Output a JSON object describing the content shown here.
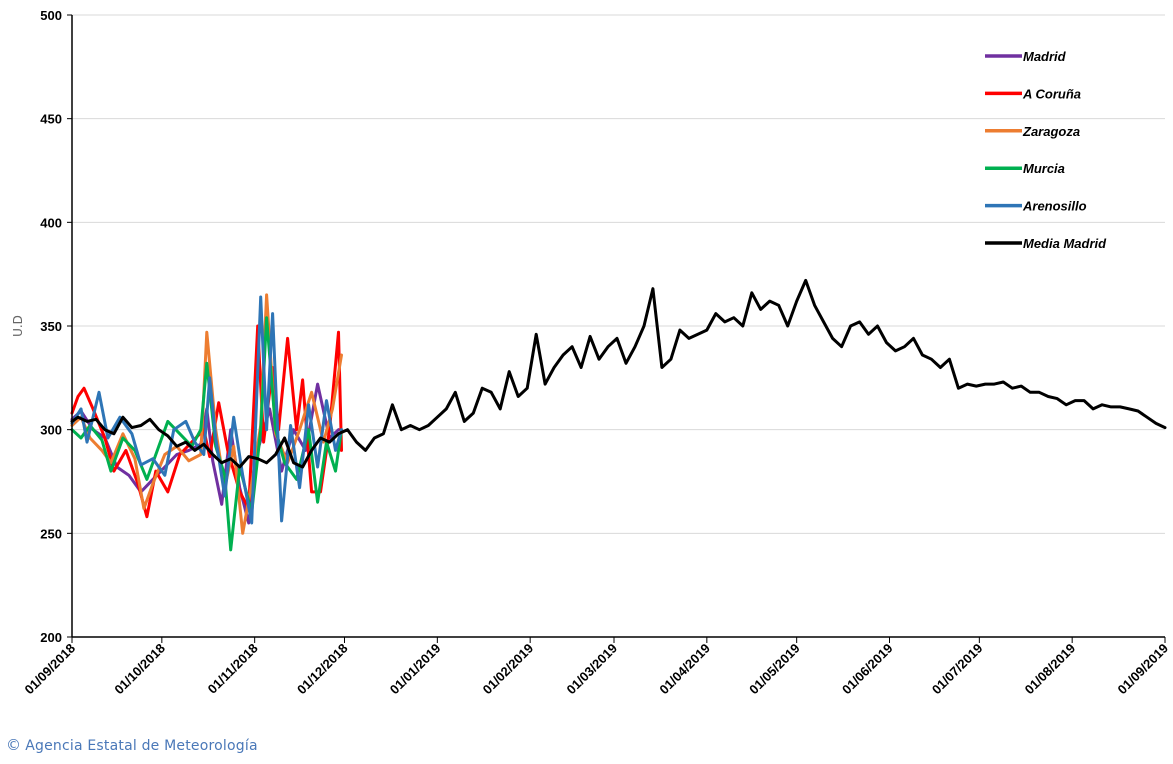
{
  "chart_data": {
    "type": "line",
    "title": "",
    "xlabel": "",
    "ylabel": "U.D",
    "ylim": [
      200,
      500
    ],
    "y_ticks": [
      200,
      250,
      300,
      350,
      400,
      450,
      500
    ],
    "x_range": [
      "2018-09-01",
      "2019-09-01"
    ],
    "x_ticks": [
      "01/09/2018",
      "01/10/2018",
      "01/11/2018",
      "01/12/2018",
      "01/01/2019",
      "01/02/2019",
      "01/03/2019",
      "01/04/2019",
      "01/05/2019",
      "01/06/2019",
      "01/07/2019",
      "01/08/2019",
      "01/09/2019"
    ],
    "grid": "horizontal",
    "legend_position": "top-right",
    "series": [
      {
        "name": "Madrid",
        "color": "#7030a0",
        "points": [
          [
            "2018-09-01",
            305
          ],
          [
            "2018-09-04",
            309
          ],
          [
            "2018-09-08",
            300
          ],
          [
            "2018-09-12",
            296
          ],
          [
            "2018-09-16",
            282
          ],
          [
            "2018-09-20",
            278
          ],
          [
            "2018-09-24",
            270
          ],
          [
            "2018-09-28",
            276
          ],
          [
            "2018-10-02",
            282
          ],
          [
            "2018-10-06",
            288
          ],
          [
            "2018-10-10",
            290
          ],
          [
            "2018-10-14",
            293
          ],
          [
            "2018-10-16",
            310
          ],
          [
            "2018-10-18",
            285
          ],
          [
            "2018-10-21",
            264
          ],
          [
            "2018-10-24",
            300
          ],
          [
            "2018-10-27",
            272
          ],
          [
            "2018-10-30",
            255
          ],
          [
            "2018-11-02",
            290
          ],
          [
            "2018-11-06",
            310
          ],
          [
            "2018-11-10",
            280
          ],
          [
            "2018-11-14",
            300
          ],
          [
            "2018-11-18",
            290
          ],
          [
            "2018-11-22",
            322
          ],
          [
            "2018-11-26",
            296
          ],
          [
            "2018-11-29",
            300
          ]
        ]
      },
      {
        "name": "A Coruña",
        "color": "#ff0000",
        "points": [
          [
            "2018-09-01",
            308
          ],
          [
            "2018-09-03",
            316
          ],
          [
            "2018-09-05",
            320
          ],
          [
            "2018-09-08",
            310
          ],
          [
            "2018-09-12",
            296
          ],
          [
            "2018-09-15",
            280
          ],
          [
            "2018-09-19",
            290
          ],
          [
            "2018-09-23",
            274
          ],
          [
            "2018-09-26",
            258
          ],
          [
            "2018-09-29",
            280
          ],
          [
            "2018-10-03",
            270
          ],
          [
            "2018-10-07",
            288
          ],
          [
            "2018-10-11",
            294
          ],
          [
            "2018-10-15",
            300
          ],
          [
            "2018-10-17",
            287
          ],
          [
            "2018-10-20",
            313
          ],
          [
            "2018-10-23",
            290
          ],
          [
            "2018-10-27",
            270
          ],
          [
            "2018-10-30",
            262
          ],
          [
            "2018-11-02",
            350
          ],
          [
            "2018-11-04",
            294
          ],
          [
            "2018-11-07",
            330
          ],
          [
            "2018-11-09",
            300
          ],
          [
            "2018-11-12",
            344
          ],
          [
            "2018-11-15",
            300
          ],
          [
            "2018-11-17",
            324
          ],
          [
            "2018-11-20",
            270
          ],
          [
            "2018-11-23",
            270
          ],
          [
            "2018-11-26",
            300
          ],
          [
            "2018-11-29",
            347
          ],
          [
            "2018-11-30",
            290
          ]
        ]
      },
      {
        "name": "Zaragoza",
        "color": "#ed7d31",
        "points": [
          [
            "2018-09-01",
            302
          ],
          [
            "2018-09-04",
            306
          ],
          [
            "2018-09-07",
            296
          ],
          [
            "2018-09-11",
            290
          ],
          [
            "2018-09-14",
            284
          ],
          [
            "2018-09-18",
            298
          ],
          [
            "2018-09-22",
            286
          ],
          [
            "2018-09-25",
            262
          ],
          [
            "2018-09-28",
            274
          ],
          [
            "2018-10-02",
            288
          ],
          [
            "2018-10-06",
            292
          ],
          [
            "2018-10-10",
            285
          ],
          [
            "2018-10-14",
            288
          ],
          [
            "2018-10-16",
            347
          ],
          [
            "2018-10-19",
            300
          ],
          [
            "2018-10-22",
            272
          ],
          [
            "2018-10-25",
            292
          ],
          [
            "2018-10-28",
            250
          ],
          [
            "2018-10-31",
            274
          ],
          [
            "2018-11-03",
            302
          ],
          [
            "2018-11-05",
            365
          ],
          [
            "2018-11-08",
            298
          ],
          [
            "2018-11-12",
            284
          ],
          [
            "2018-11-16",
            300
          ],
          [
            "2018-11-20",
            318
          ],
          [
            "2018-11-24",
            294
          ],
          [
            "2018-11-27",
            310
          ],
          [
            "2018-11-30",
            336
          ]
        ]
      },
      {
        "name": "Murcia",
        "color": "#00b050",
        "points": [
          [
            "2018-09-01",
            300
          ],
          [
            "2018-09-04",
            296
          ],
          [
            "2018-09-07",
            302
          ],
          [
            "2018-09-11",
            295
          ],
          [
            "2018-09-14",
            280
          ],
          [
            "2018-09-18",
            296
          ],
          [
            "2018-09-22",
            290
          ],
          [
            "2018-09-26",
            276
          ],
          [
            "2018-09-30",
            292
          ],
          [
            "2018-10-03",
            304
          ],
          [
            "2018-10-07",
            298
          ],
          [
            "2018-10-11",
            292
          ],
          [
            "2018-10-14",
            300
          ],
          [
            "2018-10-16",
            332
          ],
          [
            "2018-10-19",
            292
          ],
          [
            "2018-10-22",
            278
          ],
          [
            "2018-10-24",
            242
          ],
          [
            "2018-10-27",
            282
          ],
          [
            "2018-10-31",
            260
          ],
          [
            "2018-11-03",
            300
          ],
          [
            "2018-11-05",
            354
          ],
          [
            "2018-11-08",
            300
          ],
          [
            "2018-11-11",
            284
          ],
          [
            "2018-11-15",
            276
          ],
          [
            "2018-11-19",
            300
          ],
          [
            "2018-11-22",
            265
          ],
          [
            "2018-11-25",
            294
          ],
          [
            "2018-11-28",
            280
          ],
          [
            "2018-11-30",
            300
          ]
        ]
      },
      {
        "name": "Arenosillo",
        "color": "#2e75b6",
        "points": [
          [
            "2018-09-01",
            303
          ],
          [
            "2018-09-04",
            310
          ],
          [
            "2018-09-06",
            294
          ],
          [
            "2018-09-10",
            318
          ],
          [
            "2018-09-13",
            296
          ],
          [
            "2018-09-17",
            306
          ],
          [
            "2018-09-21",
            298
          ],
          [
            "2018-09-24",
            283
          ],
          [
            "2018-09-28",
            286
          ],
          [
            "2018-10-02",
            278
          ],
          [
            "2018-10-05",
            300
          ],
          [
            "2018-10-09",
            304
          ],
          [
            "2018-10-12",
            294
          ],
          [
            "2018-10-15",
            288
          ],
          [
            "2018-10-17",
            325
          ],
          [
            "2018-10-19",
            296
          ],
          [
            "2018-10-22",
            268
          ],
          [
            "2018-10-25",
            306
          ],
          [
            "2018-10-28",
            278
          ],
          [
            "2018-10-31",
            255
          ],
          [
            "2018-11-03",
            364
          ],
          [
            "2018-11-05",
            300
          ],
          [
            "2018-11-07",
            356
          ],
          [
            "2018-11-10",
            256
          ],
          [
            "2018-11-13",
            302
          ],
          [
            "2018-11-16",
            272
          ],
          [
            "2018-11-19",
            312
          ],
          [
            "2018-11-22",
            282
          ],
          [
            "2018-11-25",
            314
          ],
          [
            "2018-11-28",
            290
          ],
          [
            "2018-11-30",
            300
          ]
        ]
      },
      {
        "name": "Media Madrid",
        "color": "#000000",
        "points": [
          [
            "2018-09-01",
            304
          ],
          [
            "2018-09-03",
            306
          ],
          [
            "2018-09-06",
            304
          ],
          [
            "2018-09-09",
            305
          ],
          [
            "2018-09-12",
            300
          ],
          [
            "2018-09-15",
            298
          ],
          [
            "2018-09-18",
            306
          ],
          [
            "2018-09-21",
            301
          ],
          [
            "2018-09-24",
            302
          ],
          [
            "2018-09-27",
            305
          ],
          [
            "2018-09-30",
            300
          ],
          [
            "2018-10-03",
            297
          ],
          [
            "2018-10-06",
            292
          ],
          [
            "2018-10-09",
            294
          ],
          [
            "2018-10-12",
            290
          ],
          [
            "2018-10-15",
            293
          ],
          [
            "2018-10-18",
            288
          ],
          [
            "2018-10-21",
            284
          ],
          [
            "2018-10-24",
            286
          ],
          [
            "2018-10-27",
            282
          ],
          [
            "2018-10-30",
            287
          ],
          [
            "2018-11-02",
            286
          ],
          [
            "2018-11-05",
            284
          ],
          [
            "2018-11-08",
            288
          ],
          [
            "2018-11-11",
            296
          ],
          [
            "2018-11-14",
            284
          ],
          [
            "2018-11-17",
            282
          ],
          [
            "2018-11-20",
            290
          ],
          [
            "2018-11-23",
            296
          ],
          [
            "2018-11-26",
            294
          ],
          [
            "2018-11-29",
            298
          ],
          [
            "2018-12-02",
            300
          ],
          [
            "2018-12-05",
            294
          ],
          [
            "2018-12-08",
            290
          ],
          [
            "2018-12-11",
            296
          ],
          [
            "2018-12-14",
            298
          ],
          [
            "2018-12-17",
            312
          ],
          [
            "2018-12-20",
            300
          ],
          [
            "2018-12-23",
            302
          ],
          [
            "2018-12-26",
            300
          ],
          [
            "2018-12-29",
            302
          ],
          [
            "2019-01-01",
            306
          ],
          [
            "2019-01-04",
            310
          ],
          [
            "2019-01-07",
            318
          ],
          [
            "2019-01-10",
            304
          ],
          [
            "2019-01-13",
            308
          ],
          [
            "2019-01-16",
            320
          ],
          [
            "2019-01-19",
            318
          ],
          [
            "2019-01-22",
            310
          ],
          [
            "2019-01-25",
            328
          ],
          [
            "2019-01-28",
            316
          ],
          [
            "2019-01-31",
            320
          ],
          [
            "2019-02-03",
            346
          ],
          [
            "2019-02-06",
            322
          ],
          [
            "2019-02-09",
            330
          ],
          [
            "2019-02-12",
            336
          ],
          [
            "2019-02-15",
            340
          ],
          [
            "2019-02-18",
            330
          ],
          [
            "2019-02-21",
            345
          ],
          [
            "2019-02-24",
            334
          ],
          [
            "2019-02-27",
            340
          ],
          [
            "2019-03-02",
            344
          ],
          [
            "2019-03-05",
            332
          ],
          [
            "2019-03-08",
            340
          ],
          [
            "2019-03-11",
            350
          ],
          [
            "2019-03-14",
            368
          ],
          [
            "2019-03-17",
            330
          ],
          [
            "2019-03-20",
            334
          ],
          [
            "2019-03-23",
            348
          ],
          [
            "2019-03-26",
            344
          ],
          [
            "2019-03-29",
            346
          ],
          [
            "2019-04-01",
            348
          ],
          [
            "2019-04-04",
            356
          ],
          [
            "2019-04-07",
            352
          ],
          [
            "2019-04-10",
            354
          ],
          [
            "2019-04-13",
            350
          ],
          [
            "2019-04-16",
            366
          ],
          [
            "2019-04-19",
            358
          ],
          [
            "2019-04-22",
            362
          ],
          [
            "2019-04-25",
            360
          ],
          [
            "2019-04-28",
            350
          ],
          [
            "2019-05-01",
            362
          ],
          [
            "2019-05-04",
            372
          ],
          [
            "2019-05-07",
            360
          ],
          [
            "2019-05-10",
            352
          ],
          [
            "2019-05-13",
            344
          ],
          [
            "2019-05-16",
            340
          ],
          [
            "2019-05-19",
            350
          ],
          [
            "2019-05-22",
            352
          ],
          [
            "2019-05-25",
            346
          ],
          [
            "2019-05-28",
            350
          ],
          [
            "2019-05-31",
            342
          ],
          [
            "2019-06-03",
            338
          ],
          [
            "2019-06-06",
            340
          ],
          [
            "2019-06-09",
            344
          ],
          [
            "2019-06-12",
            336
          ],
          [
            "2019-06-15",
            334
          ],
          [
            "2019-06-18",
            330
          ],
          [
            "2019-06-21",
            334
          ],
          [
            "2019-06-24",
            320
          ],
          [
            "2019-06-27",
            322
          ],
          [
            "2019-06-30",
            321
          ],
          [
            "2019-07-03",
            322
          ],
          [
            "2019-07-06",
            322
          ],
          [
            "2019-07-09",
            323
          ],
          [
            "2019-07-12",
            320
          ],
          [
            "2019-07-15",
            321
          ],
          [
            "2019-07-18",
            318
          ],
          [
            "2019-07-21",
            318
          ],
          [
            "2019-07-24",
            316
          ],
          [
            "2019-07-27",
            315
          ],
          [
            "2019-07-30",
            312
          ],
          [
            "2019-08-02",
            314
          ],
          [
            "2019-08-05",
            314
          ],
          [
            "2019-08-08",
            310
          ],
          [
            "2019-08-11",
            312
          ],
          [
            "2019-08-14",
            311
          ],
          [
            "2019-08-17",
            311
          ],
          [
            "2019-08-20",
            310
          ],
          [
            "2019-08-23",
            309
          ],
          [
            "2019-08-26",
            306
          ],
          [
            "2019-08-29",
            303
          ],
          [
            "2019-09-01",
            301
          ]
        ]
      }
    ]
  },
  "footer": {
    "copyright_symbol": "©",
    "credit": "Agencia Estatal de Meteorología"
  }
}
